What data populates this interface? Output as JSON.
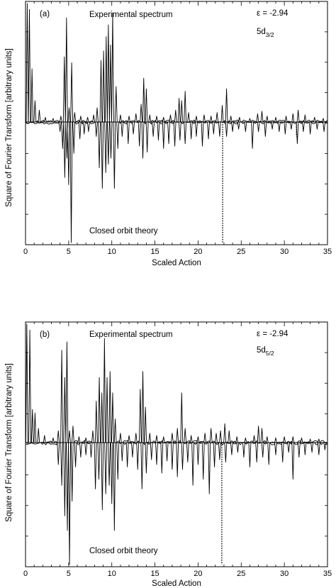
{
  "chart_data": [
    {
      "type": "line",
      "panel_label": "(a)",
      "xlabel": "Scaled Action",
      "ylabel": "Square of Fourier Transform [arbitrary units]",
      "xlim": [
        0,
        35
      ],
      "x_ticks": [
        0,
        5,
        10,
        15,
        20,
        25,
        30,
        35
      ],
      "annotations": {
        "top_label": "Experimental spectrum",
        "bottom_label": "Closed orbit theory",
        "energy": "ε = -2.94",
        "state_base": "5d",
        "state_sub": "3/2"
      },
      "series": [
        {
          "role": "top",
          "peaks": [
            [
              0.2,
              1.0
            ],
            [
              0.45,
              0.95
            ],
            [
              0.75,
              0.45
            ],
            [
              1.1,
              0.18
            ],
            [
              1.6,
              0.1
            ],
            [
              2.3,
              0.04
            ],
            [
              3.2,
              0.03
            ],
            [
              4.1,
              0.05
            ],
            [
              4.5,
              0.55
            ],
            [
              4.75,
              0.88
            ],
            [
              5.05,
              0.12
            ],
            [
              5.35,
              0.5
            ],
            [
              5.7,
              0.08
            ],
            [
              6.4,
              0.05
            ],
            [
              7.2,
              0.04
            ],
            [
              7.9,
              0.06
            ],
            [
              8.3,
              0.12
            ],
            [
              8.75,
              0.52
            ],
            [
              9.05,
              0.6
            ],
            [
              9.35,
              0.72
            ],
            [
              9.6,
              0.82
            ],
            [
              9.85,
              0.65
            ],
            [
              10.1,
              0.92
            ],
            [
              10.5,
              0.3
            ],
            [
              11.0,
              0.06
            ],
            [
              12.0,
              0.05
            ],
            [
              12.8,
              0.07
            ],
            [
              13.4,
              0.15
            ],
            [
              13.7,
              0.37
            ],
            [
              14.0,
              0.28
            ],
            [
              14.4,
              0.06
            ],
            [
              15.2,
              0.05
            ],
            [
              16.0,
              0.04
            ],
            [
              16.8,
              0.06
            ],
            [
              17.4,
              0.1
            ],
            [
              17.8,
              0.2
            ],
            [
              18.1,
              0.18
            ],
            [
              18.5,
              0.26
            ],
            [
              18.9,
              0.08
            ],
            [
              19.8,
              0.05
            ],
            [
              20.7,
              0.06
            ],
            [
              21.5,
              0.05
            ],
            [
              22.2,
              0.08
            ],
            [
              22.8,
              0.14
            ],
            [
              23.3,
              0.28
            ],
            [
              23.8,
              0.05
            ],
            [
              24.8,
              0.04
            ],
            [
              26.0,
              0.03
            ],
            [
              26.9,
              0.07
            ],
            [
              27.4,
              0.09
            ],
            [
              28.0,
              0.05
            ],
            [
              29.0,
              0.04
            ],
            [
              30.2,
              0.05
            ],
            [
              31.0,
              0.07
            ],
            [
              31.6,
              0.1
            ],
            [
              32.4,
              0.06
            ],
            [
              33.5,
              0.04
            ],
            [
              34.5,
              0.03
            ]
          ]
        },
        {
          "role": "bottom",
          "peaks": [
            [
              4.0,
              0.08
            ],
            [
              4.3,
              0.22
            ],
            [
              4.55,
              0.46
            ],
            [
              4.8,
              0.3
            ],
            [
              5.0,
              0.52
            ],
            [
              5.3,
              1.0
            ],
            [
              5.6,
              0.26
            ],
            [
              6.3,
              0.14
            ],
            [
              6.8,
              0.1
            ],
            [
              7.3,
              0.08
            ],
            [
              8.2,
              0.12
            ],
            [
              8.55,
              0.38
            ],
            [
              8.9,
              0.55
            ],
            [
              9.3,
              0.42
            ],
            [
              9.6,
              0.35
            ],
            [
              9.9,
              0.3
            ],
            [
              10.3,
              0.55
            ],
            [
              10.7,
              0.22
            ],
            [
              11.2,
              0.12
            ],
            [
              11.9,
              0.18
            ],
            [
              12.5,
              0.1
            ],
            [
              13.2,
              0.2
            ],
            [
              13.6,
              0.3
            ],
            [
              14.1,
              0.25
            ],
            [
              14.8,
              0.12
            ],
            [
              15.4,
              0.15
            ],
            [
              16.0,
              0.22
            ],
            [
              16.6,
              0.18
            ],
            [
              17.3,
              0.2
            ],
            [
              17.9,
              0.15
            ],
            [
              18.5,
              0.18
            ],
            [
              19.2,
              0.14
            ],
            [
              19.8,
              0.12
            ],
            [
              20.5,
              0.2
            ],
            [
              21.2,
              0.14
            ],
            [
              21.8,
              0.1
            ],
            [
              22.5,
              0.12
            ],
            [
              23.3,
              0.12
            ],
            [
              24.0,
              0.08
            ],
            [
              24.7,
              0.06
            ],
            [
              25.5,
              0.08
            ],
            [
              26.3,
              0.22
            ],
            [
              27.0,
              0.08
            ],
            [
              27.8,
              0.12
            ],
            [
              28.6,
              0.06
            ],
            [
              29.4,
              0.08
            ],
            [
              30.1,
              0.1
            ],
            [
              30.8,
              0.06
            ],
            [
              31.5,
              0.18
            ],
            [
              32.2,
              0.08
            ],
            [
              33.0,
              0.1
            ],
            [
              33.8,
              0.06
            ],
            [
              34.6,
              0.08
            ]
          ]
        }
      ],
      "dotted_lines": [
        [
          22.85,
          1.0
        ],
        [
          31.4,
          0.12
        ]
      ]
    },
    {
      "type": "line",
      "panel_label": "(b)",
      "xlabel": "Scaled Action",
      "ylabel": "Square of Fourier Transform [arbitrary units]",
      "xlim": [
        0,
        35
      ],
      "x_ticks": [
        0,
        5,
        10,
        15,
        20,
        25,
        30,
        35
      ],
      "annotations": {
        "top_label": "Experimental spectrum",
        "bottom_label": "Closed orbit theory",
        "energy": "ε = -2.94",
        "state_base": "5d",
        "state_sub": "5/2"
      },
      "series": [
        {
          "role": "top",
          "peaks": [
            [
              0.15,
              1.0
            ],
            [
              0.5,
              0.95
            ],
            [
              0.8,
              0.28
            ],
            [
              1.1,
              0.25
            ],
            [
              1.5,
              0.12
            ],
            [
              2.2,
              0.06
            ],
            [
              3.2,
              0.04
            ],
            [
              3.8,
              0.1
            ],
            [
              4.2,
              0.78
            ],
            [
              4.55,
              0.55
            ],
            [
              4.8,
              0.85
            ],
            [
              5.1,
              0.1
            ],
            [
              5.5,
              0.14
            ],
            [
              6.2,
              0.05
            ],
            [
              7.0,
              0.04
            ],
            [
              7.8,
              0.1
            ],
            [
              8.2,
              0.35
            ],
            [
              8.55,
              0.55
            ],
            [
              8.85,
              0.42
            ],
            [
              9.15,
              0.88
            ],
            [
              9.45,
              0.55
            ],
            [
              9.8,
              0.6
            ],
            [
              10.1,
              0.42
            ],
            [
              10.4,
              0.2
            ],
            [
              11.0,
              0.08
            ],
            [
              12.0,
              0.06
            ],
            [
              12.8,
              0.08
            ],
            [
              13.3,
              0.45
            ],
            [
              13.6,
              0.6
            ],
            [
              13.9,
              0.3
            ],
            [
              14.4,
              0.08
            ],
            [
              15.2,
              0.06
            ],
            [
              16.0,
              0.05
            ],
            [
              17.0,
              0.08
            ],
            [
              17.6,
              0.12
            ],
            [
              18.1,
              0.42
            ],
            [
              18.5,
              0.12
            ],
            [
              19.2,
              0.06
            ],
            [
              20.0,
              0.05
            ],
            [
              20.8,
              0.08
            ],
            [
              21.5,
              0.12
            ],
            [
              22.1,
              0.08
            ],
            [
              22.6,
              0.1
            ],
            [
              23.1,
              0.16
            ],
            [
              23.6,
              0.1
            ],
            [
              24.5,
              0.05
            ],
            [
              25.5,
              0.04
            ],
            [
              26.5,
              0.06
            ],
            [
              27.0,
              0.14
            ],
            [
              27.4,
              0.12
            ],
            [
              28.0,
              0.05
            ],
            [
              29.0,
              0.04
            ],
            [
              30.0,
              0.05
            ],
            [
              31.0,
              0.05
            ],
            [
              32.0,
              0.04
            ],
            [
              33.0,
              0.03
            ],
            [
              34.0,
              0.03
            ]
          ]
        },
        {
          "role": "bottom",
          "peaks": [
            [
              3.8,
              0.18
            ],
            [
              4.2,
              0.35
            ],
            [
              4.55,
              0.6
            ],
            [
              4.85,
              0.72
            ],
            [
              5.1,
              1.0
            ],
            [
              5.4,
              0.48
            ],
            [
              5.8,
              0.2
            ],
            [
              6.4,
              0.12
            ],
            [
              7.0,
              0.1
            ],
            [
              7.6,
              0.12
            ],
            [
              8.1,
              0.38
            ],
            [
              8.5,
              0.3
            ],
            [
              8.9,
              0.55
            ],
            [
              9.3,
              0.42
            ],
            [
              9.7,
              0.35
            ],
            [
              10.0,
              0.5
            ],
            [
              10.3,
              0.72
            ],
            [
              10.7,
              0.3
            ],
            [
              11.2,
              0.15
            ],
            [
              11.8,
              0.2
            ],
            [
              12.4,
              0.12
            ],
            [
              13.0,
              0.22
            ],
            [
              13.5,
              0.38
            ],
            [
              14.0,
              0.25
            ],
            [
              14.6,
              0.14
            ],
            [
              15.2,
              0.18
            ],
            [
              15.8,
              0.25
            ],
            [
              16.4,
              0.15
            ],
            [
              17.0,
              0.22
            ],
            [
              17.6,
              0.28
            ],
            [
              18.2,
              0.22
            ],
            [
              18.8,
              0.16
            ],
            [
              19.4,
              0.35
            ],
            [
              20.0,
              0.18
            ],
            [
              20.6,
              0.3
            ],
            [
              21.3,
              0.42
            ],
            [
              21.9,
              0.2
            ],
            [
              22.5,
              0.14
            ],
            [
              23.2,
              0.16
            ],
            [
              23.9,
              0.1
            ],
            [
              24.6,
              0.08
            ],
            [
              25.3,
              0.12
            ],
            [
              26.0,
              0.2
            ],
            [
              26.8,
              0.16
            ],
            [
              27.5,
              0.12
            ],
            [
              28.2,
              0.18
            ],
            [
              29.0,
              0.1
            ],
            [
              29.8,
              0.16
            ],
            [
              30.5,
              0.08
            ],
            [
              31.0,
              0.3
            ],
            [
              31.7,
              0.12
            ],
            [
              32.4,
              0.1
            ],
            [
              33.2,
              0.08
            ],
            [
              34.0,
              0.1
            ],
            [
              34.7,
              0.06
            ]
          ]
        }
      ],
      "dotted_lines": [
        [
          22.75,
          1.0
        ]
      ]
    }
  ]
}
